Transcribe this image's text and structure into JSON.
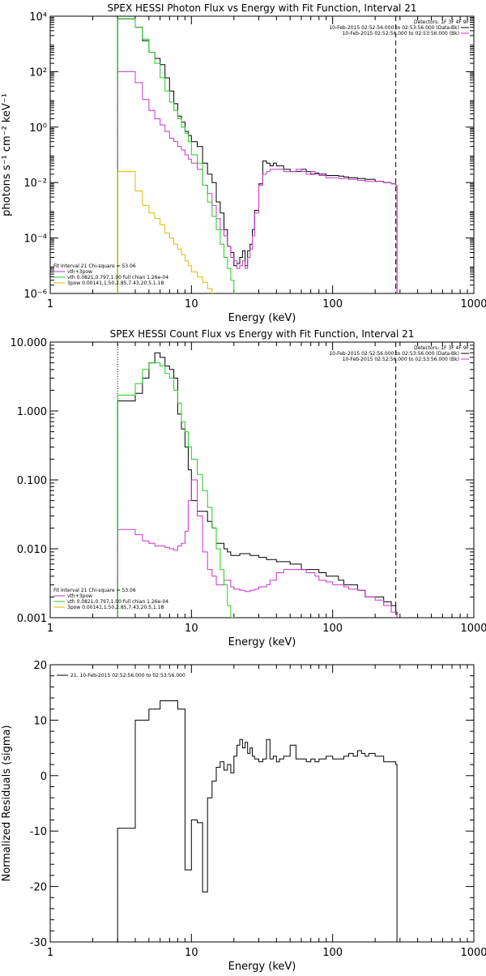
{
  "chart_data": [
    {
      "type": "line",
      "title": "SPEX HESSI Photon Flux vs Energy with Fit Function, Interval 21",
      "xlabel": "Energy (keV)",
      "ylabel": "photons s⁻¹ cm⁻² keV⁻¹",
      "xscale": "log",
      "yscale": "log",
      "xlim": [
        1,
        1000
      ],
      "ylim": [
        1e-06,
        10000.0
      ],
      "xticks": [
        "1",
        "10",
        "100",
        "1000"
      ],
      "yticks": [
        "10⁻⁶",
        "10⁻⁴",
        "10⁻²",
        "10⁰",
        "10²",
        "10⁴"
      ],
      "legend_top": [
        "Detectors: 1F 3F 4F 9F",
        "10-Feb-2015 02:52:56.000 to 02:53:56.000 (Data-Bk)",
        "10-Feb-2015 02:52:56.000 to 02:53:56.000 (Bk)"
      ],
      "legend_bottom": [
        "Fit Interval 21   Chi-square = 53.06",
        "vth+3pow",
        "vth 0.0821,0.797,1.00  full chian 1.26e-04",
        "3pow 0.00141,1.50,2.85,7.43,20.5,1.18"
      ],
      "vlines": [
        3,
        280
      ],
      "series": [
        {
          "name": "Data-Bk",
          "color": "#000000",
          "x": [
            3,
            3.5,
            4,
            4.5,
            5,
            5.5,
            6,
            6.5,
            7,
            7.5,
            8,
            8.5,
            9,
            9.5,
            10,
            11,
            12,
            13,
            14,
            15,
            16,
            17,
            18,
            19,
            20,
            21,
            22,
            23,
            24,
            25,
            26,
            27,
            28,
            30,
            32,
            34,
            36,
            38,
            40,
            45,
            50,
            55,
            60,
            65,
            70,
            75,
            80,
            90,
            100,
            110,
            120,
            130,
            150,
            170,
            200,
            230,
            260,
            280
          ],
          "y": [
            8000,
            8000,
            4000,
            1300,
            500,
            300,
            180,
            60,
            20,
            7,
            2.5,
            1.5,
            0.7,
            0.5,
            0.3,
            0.2,
            0.05,
            0.02,
            0.01,
            0.002,
            0.0008,
            0.0002,
            5e-05,
            3e-05,
            1e-05,
            1.2e-05,
            2e-05,
            3.5e-05,
            1e-05,
            3.5e-05,
            6e-05,
            0.0002,
            0.001,
            0.009,
            0.06,
            0.05,
            0.04,
            0.05,
            0.04,
            0.03,
            0.025,
            0.025,
            0.03,
            0.025,
            0.02,
            0.022,
            0.02,
            0.018,
            0.018,
            0.017,
            0.016,
            0.015,
            0.014,
            0.013,
            0.011,
            0.01,
            0.009,
            0.008
          ]
        },
        {
          "name": "vth+3pow",
          "color": "#cc33cc",
          "x": [
            3,
            3.5,
            4,
            4.5,
            5,
            5.5,
            6,
            6.5,
            7,
            7.5,
            8,
            8.5,
            9,
            9.5,
            10,
            11,
            12,
            13,
            14,
            15,
            16,
            17,
            18,
            19,
            20,
            21,
            22,
            23,
            24,
            25,
            26,
            27,
            28,
            30,
            32,
            34,
            36,
            38,
            40,
            45,
            50,
            55,
            60,
            65,
            70,
            75,
            80,
            90,
            100,
            110,
            120,
            130,
            150,
            170,
            200,
            230,
            260,
            280
          ],
          "y": [
            100,
            100,
            40,
            10,
            4,
            2,
            1.2,
            0.7,
            0.4,
            0.3,
            0.2,
            0.15,
            0.1,
            0.07,
            0.05,
            0.03,
            0.008,
            0.004,
            0.0015,
            0.0005,
            0.0002,
            0.00012,
            5e-05,
            2e-05,
            1.5e-05,
            8e-06,
            1e-05,
            1.5e-05,
            8e-06,
            2e-05,
            4e-05,
            0.00012,
            0.0008,
            0.008,
            0.02,
            0.025,
            0.03,
            0.03,
            0.03,
            0.025,
            0.025,
            0.03,
            0.025,
            0.02,
            0.025,
            0.02,
            0.018,
            0.015,
            0.015,
            0.014,
            0.014,
            0.013,
            0.012,
            0.011,
            0.011,
            0.01,
            0.009,
            0.008
          ]
        },
        {
          "name": "vth",
          "color": "#22cc22",
          "x": [
            3,
            3.5,
            4,
            4.5,
            5,
            5.5,
            6,
            6.5,
            7,
            7.5,
            8,
            8.5,
            9,
            9.5,
            10,
            11,
            12,
            13,
            14,
            15,
            16,
            17,
            18,
            19,
            20
          ],
          "y": [
            8000,
            8000,
            4000,
            1500,
            500,
            200,
            60,
            20,
            8,
            4,
            2,
            1,
            0.6,
            0.3,
            0.1,
            0.05,
            0.008,
            0.002,
            0.0006,
            0.0002,
            6e-05,
            2e-05,
            8e-06,
            3e-06,
            1e-06
          ]
        },
        {
          "name": "3pow",
          "color": "#ddbb00",
          "x": [
            3,
            3.5,
            4,
            4.5,
            5,
            5.5,
            6,
            6.5,
            7,
            7.5,
            8,
            8.5,
            9,
            9.5,
            10,
            11,
            12,
            13,
            14
          ],
          "y": [
            0.025,
            0.025,
            0.005,
            0.0015,
            0.0008,
            0.0005,
            0.0003,
            0.00015,
            0.0001,
            6e-05,
            4e-05,
            2.5e-05,
            1.5e-05,
            1e-05,
            6e-06,
            4e-06,
            2.5e-06,
            1.5e-06,
            1e-06
          ]
        }
      ]
    },
    {
      "type": "line",
      "title": "SPEX HESSI Count Flux vs Energy with Fit Function, Interval 21",
      "xlabel": "Energy (keV)",
      "ylabel": "",
      "xscale": "log",
      "yscale": "log",
      "xlim": [
        1,
        1000
      ],
      "ylim": [
        0.001,
        10
      ],
      "xticks": [
        "1",
        "10",
        "100",
        "1000"
      ],
      "yticks": [
        "0.001",
        "0.010",
        "0.100",
        "1.000",
        "10.000"
      ],
      "legend_top": [
        "Detectors: 1F 3F 4F 9F",
        "10-Feb-2015 02:52:56.000 to 02:53:56.000 (Data-Bk)",
        "10-Feb-2015 02:52:56.000 to 02:53:56.000 (Bk)"
      ],
      "legend_bottom": [
        "Fit Interval 21   Chi-square = 53.06",
        "vth+3pow",
        "vth 0.0821,0.797,1.00  full chian 1.26e-04",
        "3pow 0.00141,1.50,2.85,7.43,20.5,1.18"
      ],
      "vlines": [
        3,
        280
      ],
      "series": [
        {
          "name": "Data-Bk",
          "color": "#000000",
          "x": [
            3,
            3.5,
            4,
            4.5,
            5,
            5.5,
            6,
            6.5,
            7,
            7.5,
            8,
            8.5,
            9,
            9.5,
            10,
            11,
            12,
            13,
            14,
            15,
            16,
            17,
            18,
            19,
            20,
            22,
            24,
            26,
            28,
            30,
            32,
            34,
            36,
            38,
            40,
            45,
            50,
            55,
            60,
            65,
            70,
            75,
            80,
            90,
            100,
            110,
            120,
            130,
            150,
            170,
            200,
            230,
            260,
            280
          ],
          "y": [
            1.4,
            1.4,
            1.8,
            3,
            5,
            7,
            6,
            4.5,
            4,
            3,
            0.9,
            0.55,
            0.3,
            0.14,
            0.05,
            0.035,
            0.035,
            0.025,
            0.02,
            0.012,
            0.012,
            0.01,
            0.009,
            0.008,
            0.008,
            0.0085,
            0.0085,
            0.008,
            0.008,
            0.0075,
            0.0075,
            0.007,
            0.007,
            0.007,
            0.0065,
            0.0065,
            0.006,
            0.006,
            0.005,
            0.005,
            0.005,
            0.005,
            0.0045,
            0.004,
            0.004,
            0.0035,
            0.003,
            0.003,
            0.0025,
            0.002,
            0.002,
            0.0017,
            0.0015,
            0.0012
          ]
        },
        {
          "name": "vth+3pow",
          "color": "#cc33cc",
          "x": [
            3,
            3.5,
            4,
            4.5,
            5,
            5.5,
            6,
            6.5,
            7,
            7.5,
            8,
            8.5,
            9,
            9.5,
            10,
            11,
            12,
            13,
            14,
            15,
            16,
            17,
            18,
            19,
            20,
            22,
            24,
            26,
            28,
            30,
            32,
            34,
            36,
            38,
            40,
            45,
            50,
            55,
            60,
            65,
            70,
            75,
            80,
            90,
            100,
            110,
            120,
            130,
            150,
            170,
            200,
            230,
            260,
            280
          ],
          "y": [
            0.019,
            0.019,
            0.016,
            0.013,
            0.012,
            0.011,
            0.011,
            0.0105,
            0.01,
            0.0095,
            0.011,
            0.012,
            0.018,
            0.05,
            0.1,
            0.03,
            0.009,
            0.005,
            0.004,
            0.003,
            0.003,
            0.0035,
            0.0035,
            0.0028,
            0.0026,
            0.0025,
            0.0024,
            0.0025,
            0.0026,
            0.0028,
            0.0028,
            0.003,
            0.0035,
            0.0035,
            0.0045,
            0.005,
            0.005,
            0.005,
            0.005,
            0.0045,
            0.0045,
            0.004,
            0.0035,
            0.0033,
            0.003,
            0.003,
            0.0028,
            0.0026,
            0.0025,
            0.002,
            0.0018,
            0.0015,
            0.0012,
            0.0011
          ]
        },
        {
          "name": "vth",
          "color": "#22cc22",
          "x": [
            3,
            3.5,
            4,
            4.5,
            5,
            5.5,
            6,
            6.5,
            7,
            7.5,
            8,
            8.5,
            9,
            9.5,
            10,
            11,
            12,
            13,
            14,
            15,
            16,
            17,
            18,
            19,
            20
          ],
          "y": [
            1.7,
            1.7,
            2.5,
            4,
            5,
            5,
            4.5,
            3.5,
            3,
            2,
            1.3,
            0.7,
            0.5,
            0.3,
            0.2,
            0.12,
            0.07,
            0.04,
            0.02,
            0.01,
            0.005,
            0.003,
            0.0015,
            0.001,
            0.001
          ]
        }
      ]
    },
    {
      "type": "line",
      "title": "",
      "xlabel": "Energy (keV)",
      "ylabel": "Normalized Residuals (sigma)",
      "xscale": "log",
      "yscale": "linear",
      "xlim": [
        1,
        1000
      ],
      "ylim": [
        -30,
        20
      ],
      "xticks": [
        "1",
        "10",
        "100",
        "1000"
      ],
      "yticks": [
        "-30",
        "-20",
        "-10",
        "0",
        "10",
        "20"
      ],
      "legend": "21. 10-Feb-2015 02:52:56.000 to 02:53:56.000",
      "series": [
        {
          "name": "21. 10-Feb-2015 02:52:56.000 to 02:53:56.000",
          "color": "#000000",
          "x": [
            3,
            4,
            5,
            6,
            7,
            8,
            9,
            10,
            11,
            12,
            13,
            14,
            15,
            16,
            17,
            18,
            19,
            20,
            21,
            22,
            23,
            24,
            25,
            26,
            27,
            28,
            30,
            32,
            34,
            36,
            38,
            40,
            42,
            45,
            50,
            55,
            60,
            65,
            70,
            75,
            80,
            90,
            100,
            110,
            120,
            130,
            140,
            150,
            160,
            170,
            180,
            200,
            230,
            260,
            280
          ],
          "y": [
            -9.5,
            10,
            12,
            13.5,
            13.5,
            12,
            -17,
            -8,
            -8.5,
            -21,
            -4,
            -1,
            1.5,
            2.5,
            1,
            2,
            0.5,
            3.5,
            5.5,
            6.5,
            5,
            6,
            4,
            5,
            3.5,
            3,
            2.5,
            3,
            6.5,
            3,
            3.5,
            2.5,
            3,
            3.5,
            5.5,
            3,
            3,
            2.5,
            3,
            2.5,
            3,
            3.5,
            3,
            3,
            3.5,
            4,
            3.5,
            4.5,
            4,
            3.5,
            4,
            3.5,
            2.5,
            2.5,
            2
          ]
        }
      ]
    }
  ]
}
